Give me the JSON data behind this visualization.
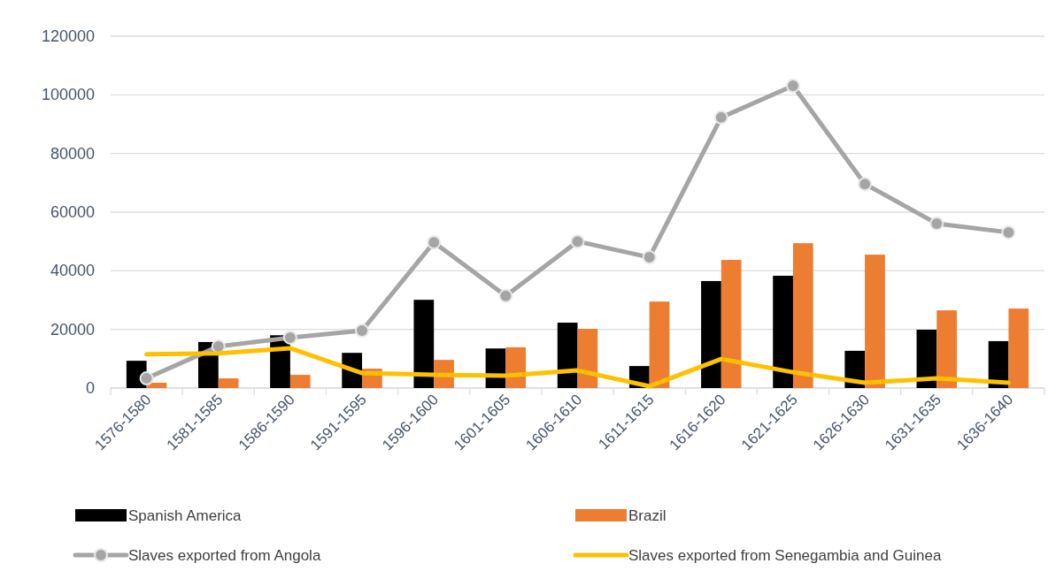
{
  "chart_data": {
    "type": "bar",
    "categories": [
      "1576-1580",
      "1581-1585",
      "1586-1590",
      "1591-1595",
      "1596-1600",
      "1601-1605",
      "1606-1610",
      "1611-1615",
      "1616-1620",
      "1621-1625",
      "1626-1630",
      "1631-1635",
      "1636-1640"
    ],
    "series": [
      {
        "name": "Spanish America",
        "color": "#000000",
        "values": [
          9300,
          15700,
          18000,
          12000,
          30100,
          13500,
          22300,
          7500,
          36500,
          38300,
          12700,
          19900,
          16000
        ]
      },
      {
        "name": "Brazil",
        "color": "#ed7d31",
        "values": [
          1800,
          3300,
          4500,
          6600,
          9600,
          13900,
          20200,
          29500,
          43700,
          49400,
          45500,
          26500,
          27100
        ]
      },
      {
        "name": "Slaves exported from Angola",
        "type": "line",
        "marker": "circle",
        "color": "#a5a5a5",
        "values": [
          3300,
          14200,
          17200,
          19600,
          49700,
          31400,
          50000,
          44600,
          92300,
          103100,
          69600,
          56100,
          53100
        ]
      },
      {
        "name": "Slaves exported from Senegambia and Guinea",
        "type": "line",
        "marker": "none",
        "color": "#ffc000",
        "values": [
          11500,
          11800,
          13600,
          5100,
          4500,
          4200,
          6000,
          600,
          9900,
          5400,
          1800,
          3300,
          1800
        ]
      }
    ],
    "ylim": [
      0,
      120000
    ],
    "yticks": [
      0,
      20000,
      40000,
      60000,
      80000,
      100000,
      120000
    ],
    "grid": "y",
    "legend": "bottom"
  }
}
